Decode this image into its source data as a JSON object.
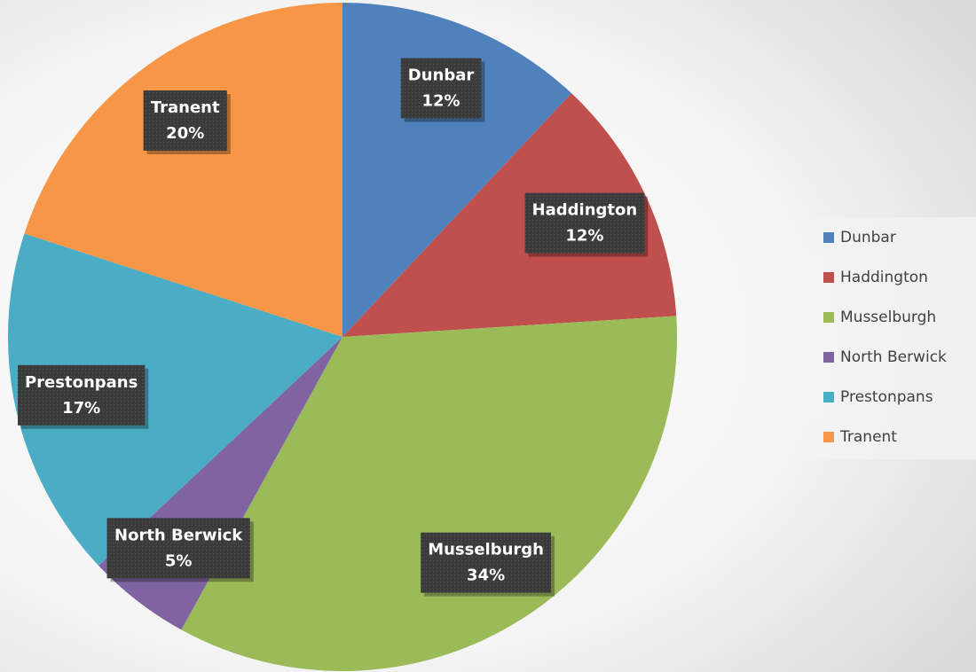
{
  "chart_data": {
    "type": "pie",
    "categories": [
      "Dunbar",
      "Haddington",
      "Musselburgh",
      "North Berwick",
      "Prestonpans",
      "Tranent"
    ],
    "values": [
      12,
      12,
      34,
      5,
      17,
      20
    ],
    "value_labels": [
      "12%",
      "12%",
      "34%",
      "5%",
      "17%",
      "20%"
    ],
    "colors": [
      "#4f81bd",
      "#c0504d",
      "#9bbb59",
      "#8064a2",
      "#4bacc6",
      "#f79646"
    ],
    "legend": "right"
  }
}
